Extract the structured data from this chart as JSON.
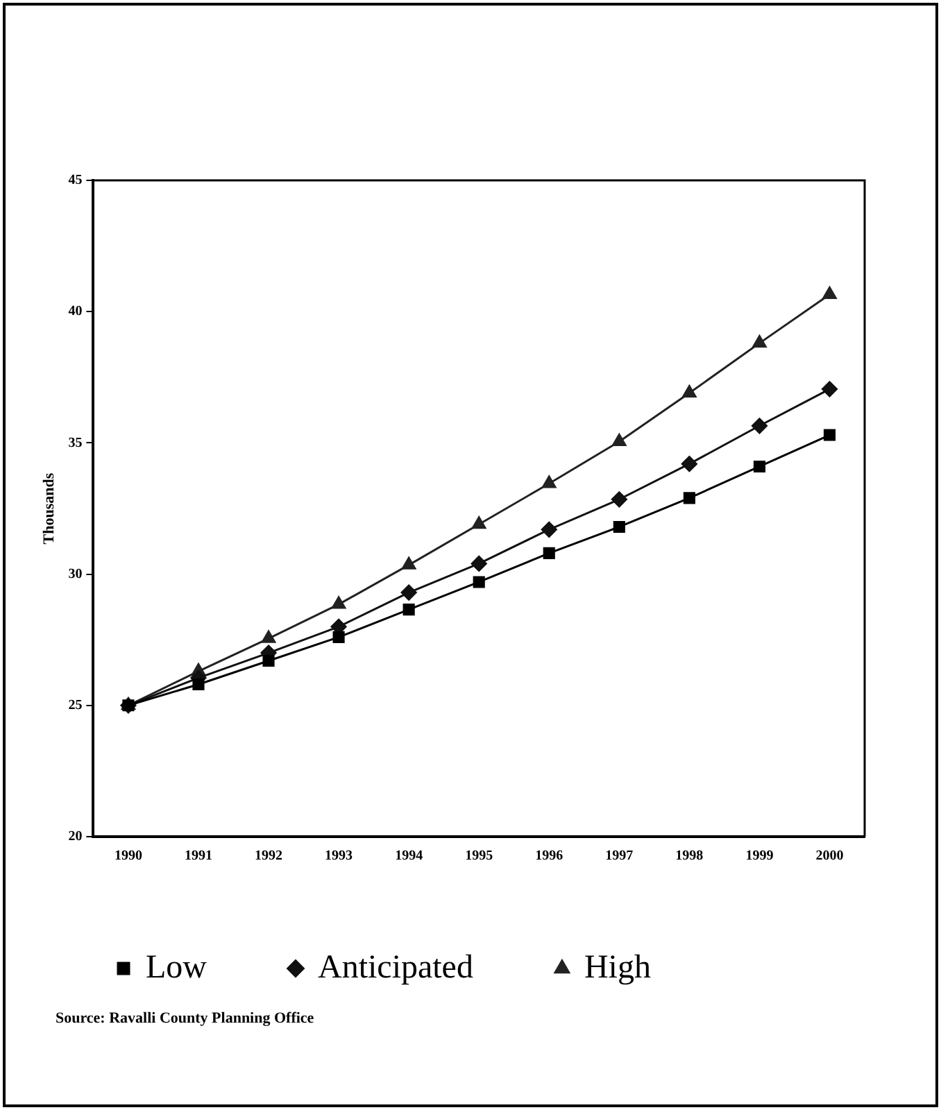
{
  "chart_data": {
    "type": "line",
    "ylabel": "Thousands",
    "categories": [
      "1990",
      "1991",
      "1992",
      "1993",
      "1994",
      "1995",
      "1996",
      "1997",
      "1998",
      "1999",
      "2000"
    ],
    "series": [
      {
        "name": "Low",
        "color": "#000000",
        "marker": "square",
        "values": [
          25,
          25.8,
          26.7,
          27.6,
          28.65,
          29.7,
          30.8,
          31.8,
          32.9,
          34.1,
          35.3
        ]
      },
      {
        "name": "Anticipated",
        "color": "#111111",
        "marker": "diamond",
        "values": [
          25,
          26.05,
          27.0,
          28.0,
          29.3,
          30.4,
          31.7,
          32.85,
          34.2,
          35.65,
          37.05
        ]
      },
      {
        "name": "High",
        "color": "#222222",
        "marker": "triangle",
        "values": [
          25,
          26.3,
          27.55,
          28.85,
          30.35,
          31.9,
          33.45,
          35.05,
          36.9,
          38.8,
          40.65
        ]
      }
    ],
    "ylim": [
      20,
      45
    ],
    "yticks": [
      20,
      25,
      30,
      35,
      40,
      45
    ],
    "grid": false,
    "legend": "bottom",
    "line_style": "solid",
    "annotations": [
      "Source: Ravalli County Planning Office"
    ]
  }
}
